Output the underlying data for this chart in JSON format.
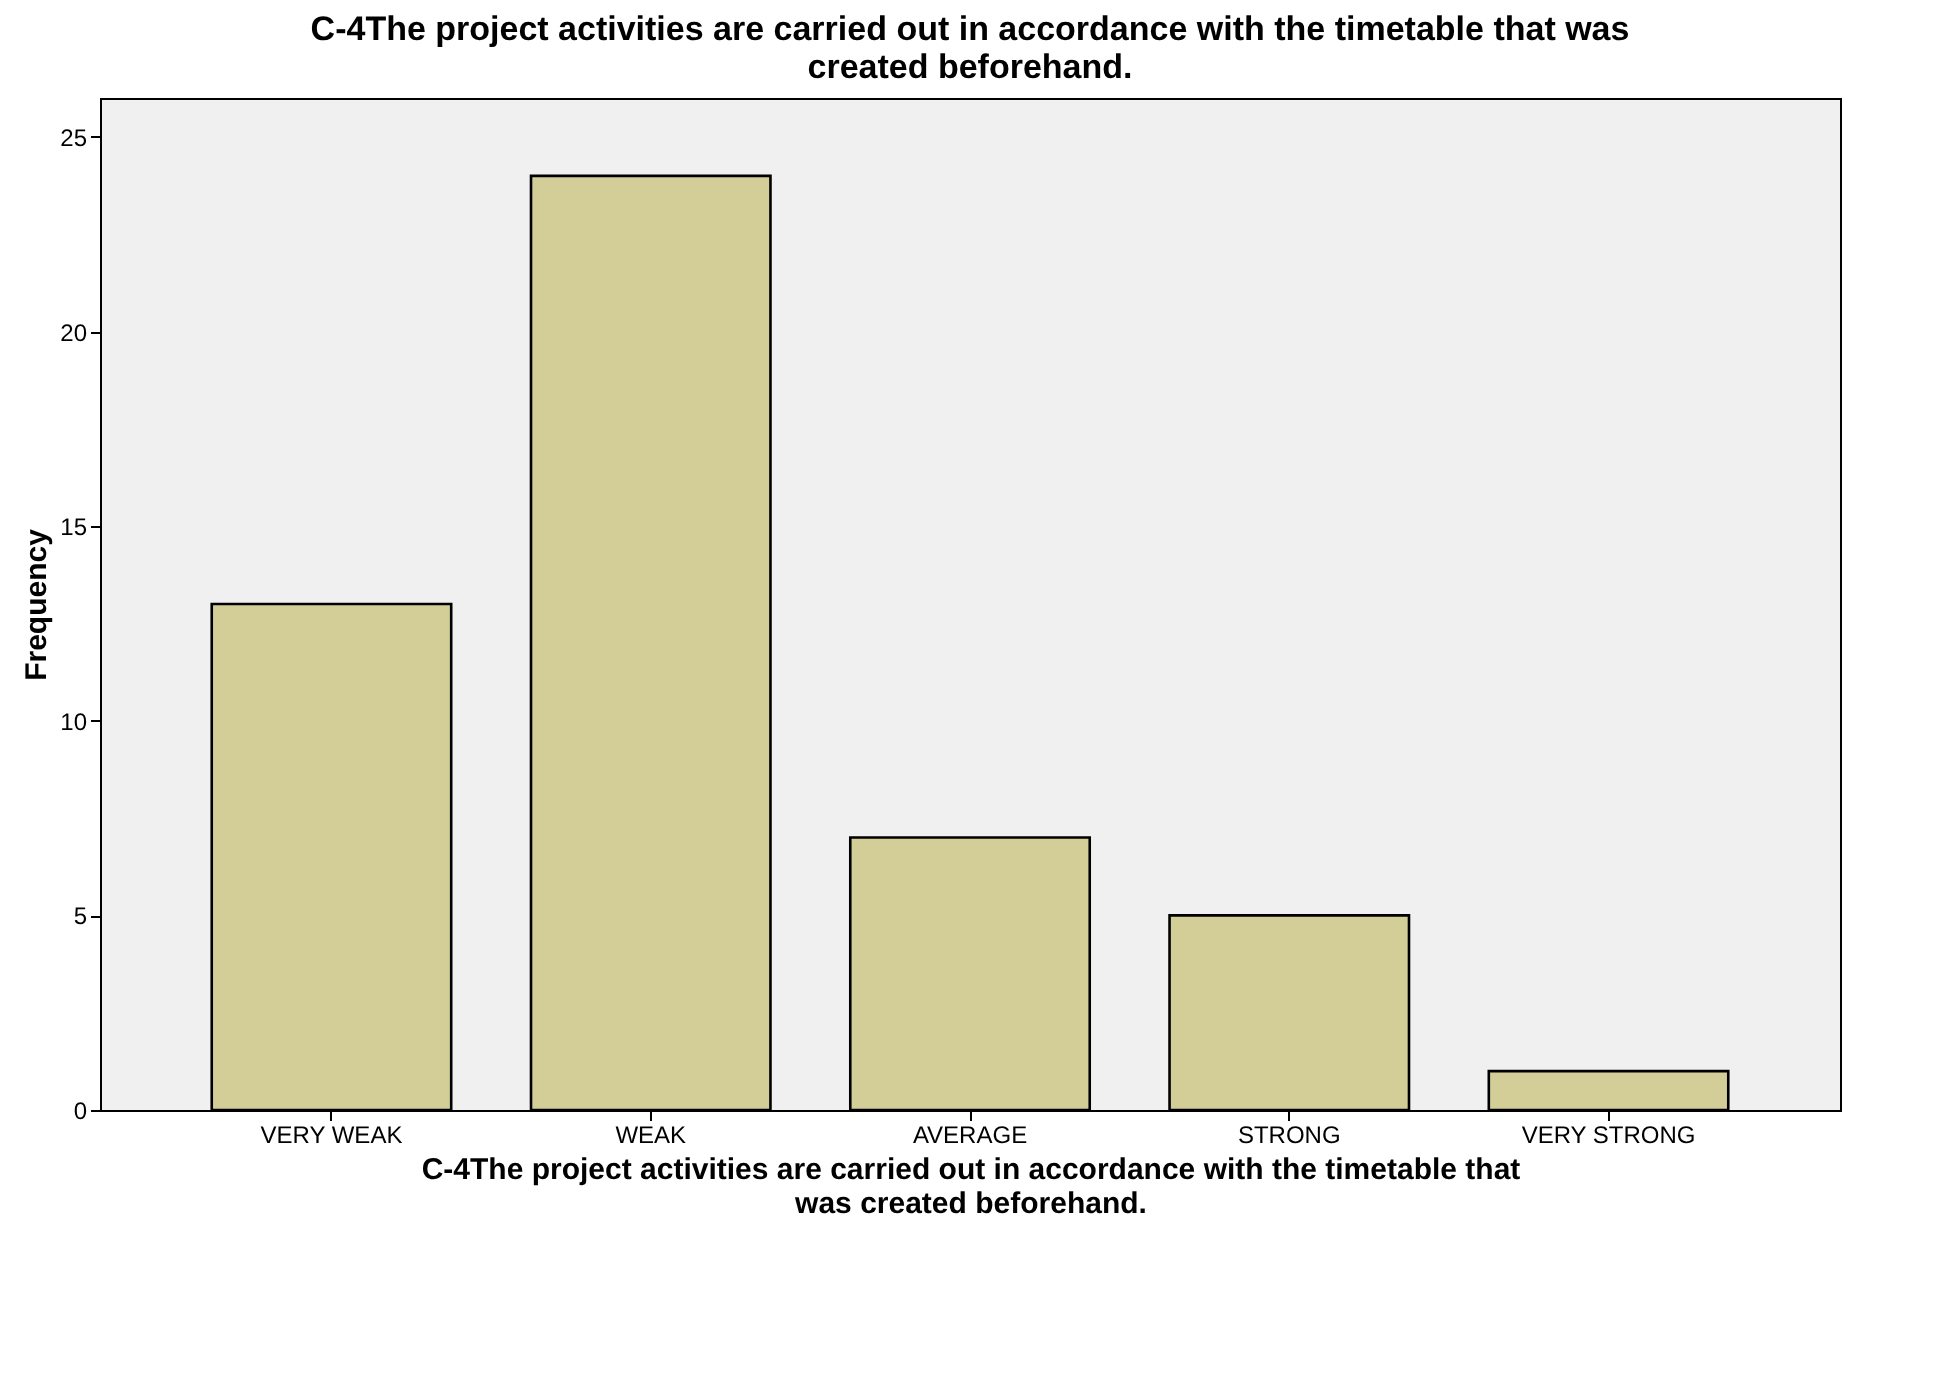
{
  "chart_data": {
    "type": "bar",
    "title": "C-4The project activities are carried out in accordance with the timetable that was created beforehand.",
    "xlabel": "C-4The project activities are carried out in accordance with the timetable that was created beforehand.",
    "ylabel": "Frequency",
    "categories": [
      "VERY WEAK",
      "WEAK",
      "AVERAGE",
      "STRONG",
      "VERY STRONG"
    ],
    "values": [
      13,
      24,
      7,
      5,
      1
    ],
    "color": "#d3ce98",
    "ylim": [
      0,
      26
    ],
    "yticks": [
      0,
      5,
      10,
      15,
      20,
      25
    ],
    "grid": false
  }
}
